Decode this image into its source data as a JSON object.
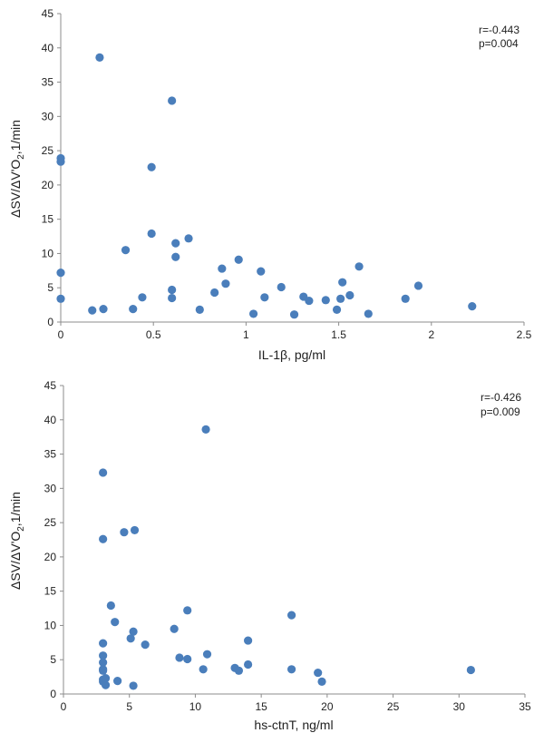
{
  "colors": {
    "marker": "#4a7ebb",
    "axis": "#8c8c8c"
  },
  "chart_data": [
    {
      "type": "scatter",
      "xlabel": "IL-1β, pg/ml",
      "ylabel_parts": {
        "delta1": "Δ",
        "sv": "SV/",
        "delta2": "ΔV'O",
        "sub": "2",
        "rest": ",1/min"
      },
      "xlim": [
        0,
        2.5
      ],
      "ylim": [
        0,
        45
      ],
      "xticks": [
        "0",
        "0.5",
        "1",
        "1.5",
        "2",
        "2.5"
      ],
      "yticks": [
        "0",
        "5",
        "10",
        "15",
        "20",
        "25",
        "30",
        "35",
        "40",
        "45"
      ],
      "stats": {
        "r": "r=-0.443",
        "p": "p=0.004"
      },
      "points": [
        {
          "x": 0.0,
          "y": 23.9
        },
        {
          "x": 0.0,
          "y": 23.4
        },
        {
          "x": 0.0,
          "y": 7.2
        },
        {
          "x": 0.0,
          "y": 3.4
        },
        {
          "x": 0.17,
          "y": 1.7
        },
        {
          "x": 0.21,
          "y": 38.6
        },
        {
          "x": 0.23,
          "y": 1.9
        },
        {
          "x": 0.35,
          "y": 10.5
        },
        {
          "x": 0.39,
          "y": 1.9
        },
        {
          "x": 0.44,
          "y": 3.6
        },
        {
          "x": 0.49,
          "y": 22.6
        },
        {
          "x": 0.49,
          "y": 12.9
        },
        {
          "x": 0.6,
          "y": 32.3
        },
        {
          "x": 0.6,
          "y": 4.7
        },
        {
          "x": 0.6,
          "y": 3.5
        },
        {
          "x": 0.62,
          "y": 11.5
        },
        {
          "x": 0.62,
          "y": 9.5
        },
        {
          "x": 0.69,
          "y": 12.2
        },
        {
          "x": 0.75,
          "y": 1.8
        },
        {
          "x": 0.83,
          "y": 4.3
        },
        {
          "x": 0.87,
          "y": 7.8
        },
        {
          "x": 0.89,
          "y": 5.6
        },
        {
          "x": 0.96,
          "y": 9.1
        },
        {
          "x": 1.04,
          "y": 1.2
        },
        {
          "x": 1.08,
          "y": 7.4
        },
        {
          "x": 1.1,
          "y": 3.6
        },
        {
          "x": 1.19,
          "y": 5.1
        },
        {
          "x": 1.26,
          "y": 1.1
        },
        {
          "x": 1.31,
          "y": 3.7
        },
        {
          "x": 1.34,
          "y": 3.1
        },
        {
          "x": 1.43,
          "y": 3.2
        },
        {
          "x": 1.49,
          "y": 1.8
        },
        {
          "x": 1.51,
          "y": 3.4
        },
        {
          "x": 1.52,
          "y": 5.8
        },
        {
          "x": 1.56,
          "y": 3.9
        },
        {
          "x": 1.61,
          "y": 8.1
        },
        {
          "x": 1.66,
          "y": 1.2
        },
        {
          "x": 1.86,
          "y": 3.4
        },
        {
          "x": 1.93,
          "y": 5.3
        },
        {
          "x": 2.22,
          "y": 2.3
        }
      ]
    },
    {
      "type": "scatter",
      "xlabel": "hs-ctnT, ng/ml",
      "ylabel_parts": {
        "delta1": "Δ",
        "sv": "SV/",
        "delta2": "ΔV'O",
        "sub": "2",
        "rest": ",1/min"
      },
      "xlim": [
        0,
        35
      ],
      "ylim": [
        0,
        45
      ],
      "xticks": [
        "0",
        "5",
        "10",
        "15",
        "20",
        "25",
        "30",
        "35"
      ],
      "yticks": [
        "0",
        "5",
        "10",
        "15",
        "20",
        "25",
        "30",
        "35",
        "40",
        "45"
      ],
      "stats": {
        "r": "r=-0.426",
        "p": "p=0.009"
      },
      "points": [
        {
          "x": 3.0,
          "y": 32.3
        },
        {
          "x": 3.0,
          "y": 22.6
        },
        {
          "x": 3.0,
          "y": 7.4
        },
        {
          "x": 3.0,
          "y": 5.6
        },
        {
          "x": 3.0,
          "y": 4.6
        },
        {
          "x": 3.0,
          "y": 3.6
        },
        {
          "x": 3.0,
          "y": 3.4
        },
        {
          "x": 3.0,
          "y": 2.1
        },
        {
          "x": 3.0,
          "y": 1.8
        },
        {
          "x": 3.2,
          "y": 2.3
        },
        {
          "x": 3.2,
          "y": 1.3
        },
        {
          "x": 3.6,
          "y": 12.9
        },
        {
          "x": 3.9,
          "y": 10.5
        },
        {
          "x": 4.1,
          "y": 1.9
        },
        {
          "x": 4.6,
          "y": 23.6
        },
        {
          "x": 5.1,
          "y": 8.1
        },
        {
          "x": 5.3,
          "y": 9.1
        },
        {
          "x": 5.4,
          "y": 23.9
        },
        {
          "x": 5.3,
          "y": 1.2
        },
        {
          "x": 6.2,
          "y": 7.2
        },
        {
          "x": 8.4,
          "y": 9.5
        },
        {
          "x": 8.8,
          "y": 5.3
        },
        {
          "x": 9.4,
          "y": 12.2
        },
        {
          "x": 9.4,
          "y": 5.1
        },
        {
          "x": 10.6,
          "y": 3.6
        },
        {
          "x": 10.8,
          "y": 38.6
        },
        {
          "x": 10.9,
          "y": 5.8
        },
        {
          "x": 13.0,
          "y": 3.8
        },
        {
          "x": 13.3,
          "y": 3.4
        },
        {
          "x": 14.0,
          "y": 7.8
        },
        {
          "x": 14.0,
          "y": 4.3
        },
        {
          "x": 17.3,
          "y": 11.5
        },
        {
          "x": 17.3,
          "y": 3.6
        },
        {
          "x": 19.3,
          "y": 3.1
        },
        {
          "x": 19.6,
          "y": 1.8
        },
        {
          "x": 30.9,
          "y": 3.5
        }
      ]
    }
  ]
}
